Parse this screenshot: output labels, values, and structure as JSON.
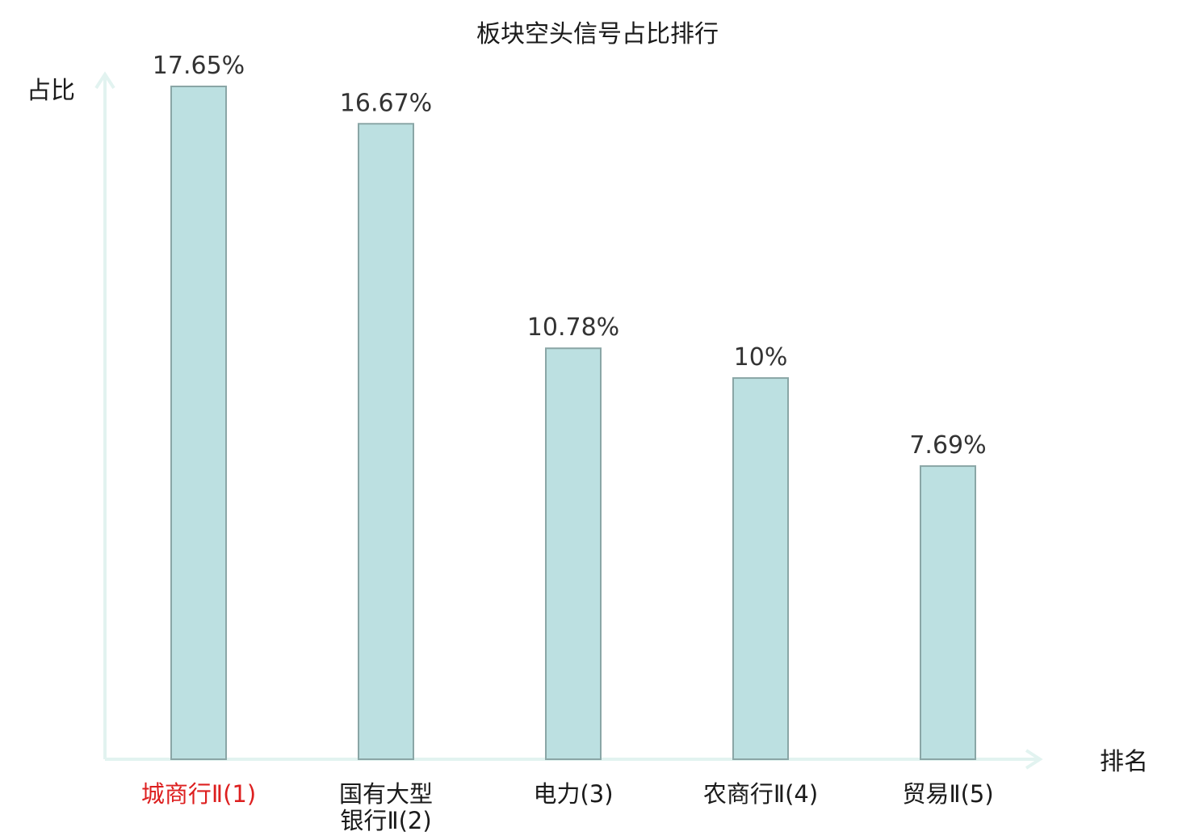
{
  "chart_data": {
    "type": "bar",
    "title": "板块空头信号占比排行",
    "xlabel": "排名",
    "ylabel": "占比",
    "categories": [
      [
        "城商行Ⅱ(1)"
      ],
      [
        "国有大型",
        "银行Ⅱ(2)"
      ],
      [
        "电力(3)"
      ],
      [
        "农商行Ⅱ(4)"
      ],
      [
        "贸易Ⅱ(5)"
      ]
    ],
    "values": [
      17.65,
      16.67,
      10.78,
      10,
      7.69
    ],
    "value_labels": [
      "17.65%",
      "16.67%",
      "10.78%",
      "10%",
      "7.69%"
    ],
    "unit": "%",
    "ylim": [
      0,
      17.65
    ],
    "grid": false,
    "highlight_index": 0,
    "colors": {
      "bar_fill": "#bce0e1",
      "bar_stroke": "#8aa6a6",
      "axis": "#e2f3f0",
      "text": "#1a1a1a",
      "value_label": "#333333",
      "highlight": "#dd1f1f"
    }
  }
}
